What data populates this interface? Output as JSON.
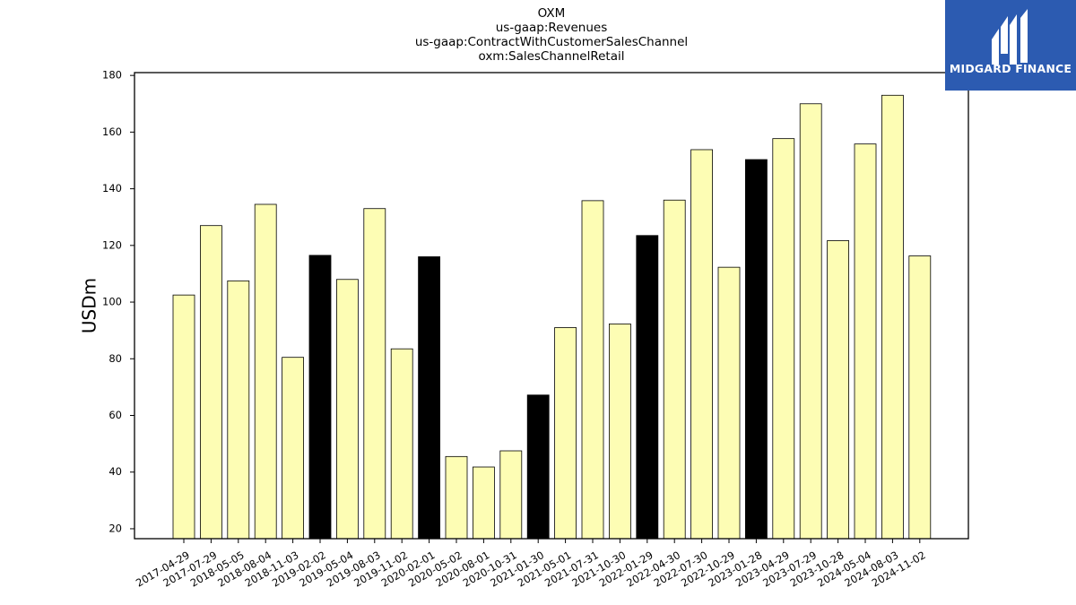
{
  "title_lines": [
    "OXM",
    "us-gaap:Revenues",
    "us-gaap:ContractWithCustomerSalesChannel",
    "oxm:SalesChannelRetail"
  ],
  "logo": {
    "text": "MIDGARD FINANCE",
    "bg": "#2c5bb1"
  },
  "colors": {
    "normal_bar": "#fdfdb4",
    "highlight_bar": "#000000",
    "edge": "#000000"
  },
  "chart_data": {
    "type": "bar",
    "title": "OXM\nus-gaap:Revenues\nus-gaap:ContractWithCustomerSalesChannel\noxm:SalesChannelRetail",
    "xlabel": "",
    "ylabel": "USDm",
    "ylim": [
      16.5,
      181
    ],
    "yticks": [
      20,
      40,
      60,
      80,
      100,
      120,
      140,
      160,
      180
    ],
    "grid": false,
    "categories": [
      "2017-04-29",
      "2017-07-29",
      "2018-05-05",
      "2018-08-04",
      "2018-11-03",
      "2019-02-02",
      "2019-05-04",
      "2019-08-03",
      "2019-11-02",
      "2020-02-01",
      "2020-05-02",
      "2020-08-01",
      "2020-10-31",
      "2021-01-30",
      "2021-05-01",
      "2021-07-31",
      "2021-10-30",
      "2022-01-29",
      "2022-04-30",
      "2022-07-30",
      "2022-10-29",
      "2023-01-28",
      "2023-04-29",
      "2023-07-29",
      "2023-10-28",
      "2024-05-04",
      "2024-08-03",
      "2024-11-02"
    ],
    "values": [
      102.5,
      127,
      107.5,
      134.5,
      80.5,
      116.5,
      108,
      133,
      83.5,
      116,
      45.5,
      41.8,
      47.5,
      67.2,
      91,
      135.8,
      92.3,
      123.5,
      136,
      153.8,
      112.3,
      150.3,
      157.7,
      170,
      121.7,
      155.8,
      173,
      116.3
    ],
    "highlighted": [
      false,
      false,
      false,
      false,
      false,
      true,
      false,
      false,
      false,
      true,
      false,
      false,
      false,
      true,
      false,
      false,
      false,
      true,
      false,
      false,
      false,
      true,
      false,
      false,
      false,
      false,
      false,
      false
    ]
  }
}
